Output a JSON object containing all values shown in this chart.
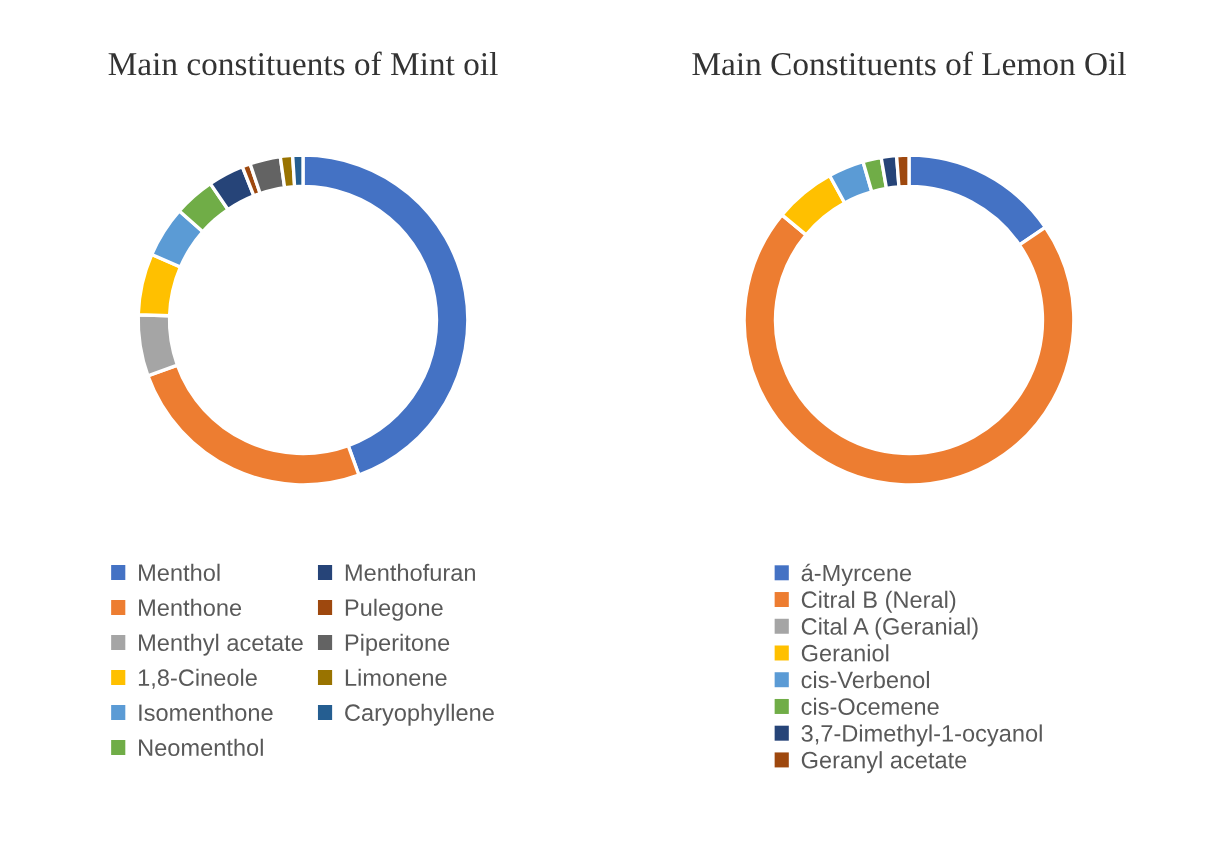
{
  "chart_data": [
    {
      "type": "donut",
      "title": "Main constituents of Mint oil",
      "legend": "bottom",
      "categories": [
        "Menthol",
        "Menthone",
        "Menthyl acetate",
        "1,8-Cineole",
        "Isomenthone",
        "Neomenthol",
        "Menthofuran",
        "Pulegone",
        "Piperitone",
        "Limonene",
        "Caryophyllene"
      ],
      "values": [
        44.5,
        25,
        6,
        6,
        5,
        4,
        3.5,
        0.8,
        3,
        1.2,
        1
      ],
      "colors": [
        "#4472c4",
        "#ed7d31",
        "#a5a5a5",
        "#ffc000",
        "#5b9bd5",
        "#70ad47",
        "#264478",
        "#9e480e",
        "#636363",
        "#997300",
        "#255e91"
      ]
    },
    {
      "type": "donut",
      "title": "Main Constituents of Lemon Oil",
      "legend": "bottom",
      "categories": [
        "á-Myrcene",
        "Citral B (Neral)",
        "Cital A (Geranial)",
        "Geraniol",
        "cis-Verbenol",
        "cis-Ocemene",
        "3,7-Dimethyl-1-ocyanol",
        "Geranyl acetate"
      ],
      "values": [
        15.5,
        70.5,
        0,
        6,
        3.5,
        1.8,
        1.5,
        1.2
      ],
      "colors": [
        "#4472c4",
        "#ed7d31",
        "#a5a5a5",
        "#ffc000",
        "#5b9bd5",
        "#70ad47",
        "#264478",
        "#9e480e"
      ]
    }
  ]
}
